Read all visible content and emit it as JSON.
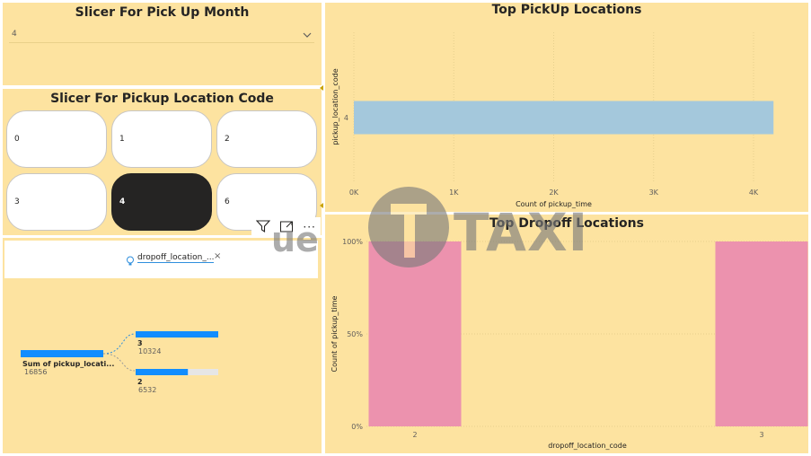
{
  "month_slicer": {
    "title": "Slicer For Pick Up Month",
    "selected": "4"
  },
  "location_slicer": {
    "title": "Slicer For Pickup Location Code",
    "tiles": [
      {
        "label": "0",
        "selected": false
      },
      {
        "label": "1",
        "selected": false
      },
      {
        "label": "2",
        "selected": false
      },
      {
        "label": "3",
        "selected": false
      },
      {
        "label": "4",
        "selected": true
      },
      {
        "label": "6",
        "selected": false
      }
    ]
  },
  "decomposition": {
    "field_chip": "dropoff_location_...",
    "root_label": "Sum of pickup_locati...",
    "root_value": "16856",
    "nodes": [
      {
        "label": "3",
        "value": "10324",
        "fraction": 1.0
      },
      {
        "label": "2",
        "value": "6532",
        "fraction": 0.6327
      }
    ]
  },
  "watermark": {
    "text": "TAXI",
    "prefix": "ue"
  },
  "chart_data": [
    {
      "type": "bar",
      "orientation": "horizontal",
      "title": "Top PickUp Locations",
      "categories": [
        "4"
      ],
      "values": [
        4200
      ],
      "xlabel": "Count of pickup_time",
      "ylabel": "pickup_location_code",
      "xlim": [
        0,
        4000
      ],
      "xticks": [
        "0K",
        "1K",
        "2K",
        "3K",
        "4K"
      ],
      "color": "#a4c8dc"
    },
    {
      "type": "bar",
      "title": "Top Dropoff Locations",
      "categories": [
        "2",
        "3"
      ],
      "values": [
        1.0,
        1.0
      ],
      "xlabel": "dropoff_location_code",
      "ylabel": "Count of pickup_time",
      "ylim": [
        0,
        1
      ],
      "yticks": [
        "0%",
        "50%",
        "100%"
      ],
      "color": "#ec92ae"
    }
  ]
}
